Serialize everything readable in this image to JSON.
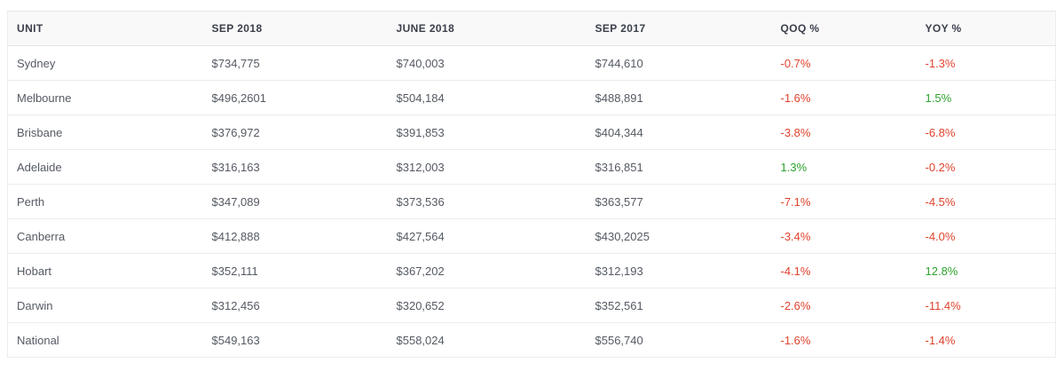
{
  "table": {
    "headers": [
      "UNIT",
      "SEP 2018",
      "JUNE 2018",
      "SEP 2017",
      "QOQ %",
      "YOY %"
    ],
    "rows": [
      {
        "unit": "Sydney",
        "sep2018": "$734,775",
        "jun2018": "$740,003",
        "sep2017": "$744,610",
        "qoq": "-0.7%",
        "yoy": "-1.3%"
      },
      {
        "unit": "Melbourne",
        "sep2018": "$496,2601",
        "jun2018": "$504,184",
        "sep2017": "$488,891",
        "qoq": "-1.6%",
        "yoy": "1.5%"
      },
      {
        "unit": "Brisbane",
        "sep2018": "$376,972",
        "jun2018": "$391,853",
        "sep2017": "$404,344",
        "qoq": "-3.8%",
        "yoy": "-6.8%"
      },
      {
        "unit": "Adelaide",
        "sep2018": "$316,163",
        "jun2018": "$312,003",
        "sep2017": "$316,851",
        "qoq": "1.3%",
        "yoy": "-0.2%"
      },
      {
        "unit": "Perth",
        "sep2018": "$347,089",
        "jun2018": "$373,536",
        "sep2017": "$363,577",
        "qoq": "-7.1%",
        "yoy": "-4.5%"
      },
      {
        "unit": "Canberra",
        "sep2018": "$412,888",
        "jun2018": "$427,564",
        "sep2017": "$430,2025",
        "qoq": "-3.4%",
        "yoy": "-4.0%"
      },
      {
        "unit": "Hobart",
        "sep2018": "$352,111",
        "jun2018": "$367,202",
        "sep2017": "$312,193",
        "qoq": "-4.1%",
        "yoy": "12.8%"
      },
      {
        "unit": "Darwin",
        "sep2018": "$312,456",
        "jun2018": "$320,652",
        "sep2017": "$352,561",
        "qoq": "-2.6%",
        "yoy": "-11.4%"
      },
      {
        "unit": "National",
        "sep2018": "$549,163",
        "jun2018": "$558,024",
        "sep2017": "$556,740",
        "qoq": "-1.6%",
        "yoy": "-1.4%"
      }
    ]
  },
  "colors": {
    "negative": "#e0432e",
    "positive": "#2ea22e",
    "header_bg": "#f9f9f9",
    "text": "#555a63"
  }
}
